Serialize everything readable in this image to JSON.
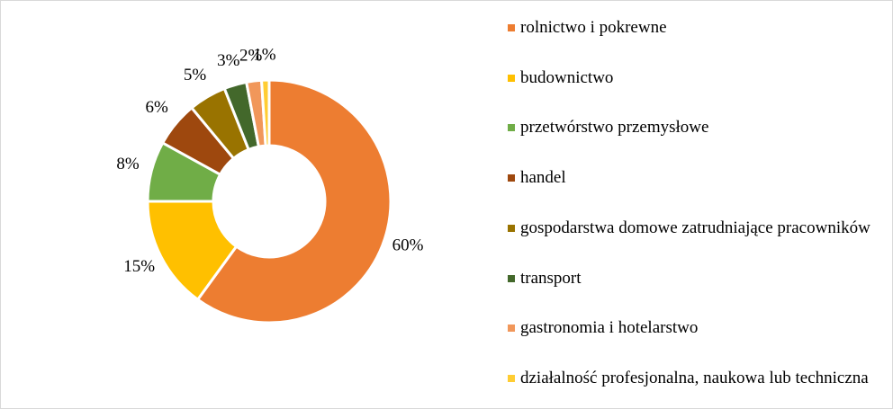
{
  "chart_data": {
    "type": "donut",
    "categories": [
      "rolnictwo i pokrewne",
      "budownictwo",
      "przetwórstwo przemysłowe",
      "handel",
      "gospodarstwa domowe zatrudniające pracowników",
      "transport",
      "gastronomia i hotelarstwo",
      "działalność profesjonalna, naukowa lub techniczna"
    ],
    "values": [
      60,
      15,
      8,
      6,
      5,
      3,
      2,
      1
    ],
    "value_labels": [
      "60%",
      "15%",
      "8%",
      "6%",
      "5%",
      "3%",
      "2%",
      "1%"
    ],
    "colors": [
      "#ED7D31",
      "#FFC000",
      "#70AD47",
      "#9E480E",
      "#997300",
      "#43682B",
      "#F1975A",
      "#FFCD33"
    ],
    "legend": "right"
  }
}
